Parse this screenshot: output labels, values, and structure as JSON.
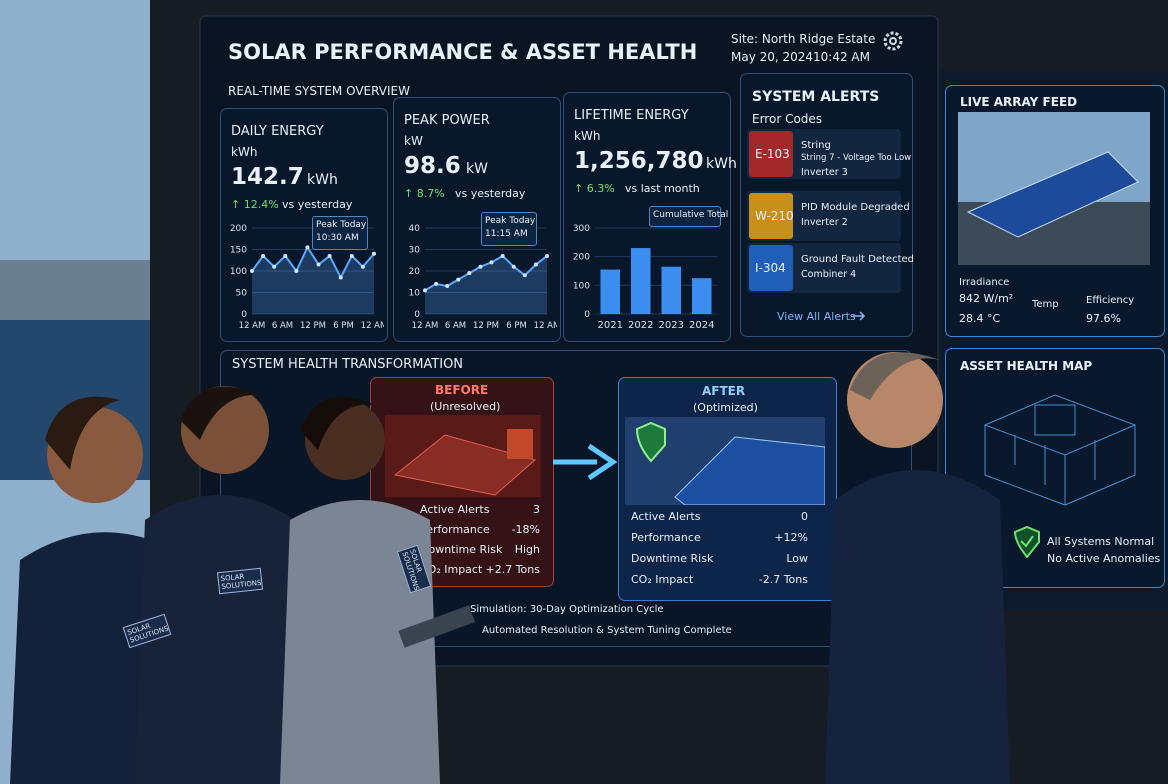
{
  "header": {
    "title": "SOLAR PERFORMANCE & ASSET HEALTH",
    "subtitle": "REAL-TIME SYSTEM OVERVIEW",
    "site": "Site: North Ridge Estate",
    "date": "May 20, 2024",
    "time": "10:42 AM"
  },
  "kpis": [
    {
      "title": "DAILY ENERGY",
      "unit": "kWh",
      "value": "142.7",
      "value_unit": "kWh",
      "change": "↑ 12.4%",
      "change_note": "vs yesterday",
      "callout": [
        "Peak Today",
        "10:30 AM"
      ],
      "chart": {
        "type": "line",
        "color": "#5aa9ff",
        "x_labels": [
          "12 AM",
          "6 AM",
          "12 PM",
          "6 PM",
          "12 AM"
        ],
        "ylim": [
          0,
          200
        ],
        "yticks": [
          0,
          50,
          100,
          150,
          200
        ],
        "values": [
          100,
          135,
          110,
          135,
          100,
          155,
          115,
          135,
          85,
          135,
          110,
          140
        ]
      }
    },
    {
      "title": "PEAK POWER",
      "unit": "kW",
      "value": "98.6",
      "value_unit": "kW",
      "change": "↑ 8.7%",
      "change_note": "vs yesterday",
      "callout": [
        "Peak Today",
        "11:15 AM"
      ],
      "chart": {
        "type": "line",
        "color": "#5aa9ff",
        "x_labels": [
          "12 AM",
          "6 AM",
          "12 PM",
          "6 PM",
          "12 AM"
        ],
        "ylim": [
          0,
          40
        ],
        "yticks": [
          0,
          10,
          20,
          30,
          40
        ],
        "values": [
          11,
          14,
          13,
          16,
          19,
          22,
          24,
          27,
          22,
          18,
          23,
          27
        ]
      }
    },
    {
      "title": "LIFETIME ENERGY",
      "unit": "kWh",
      "value": "1,256,780",
      "value_unit": "kWh",
      "change": "↑ 6.3%",
      "change_note": "vs last month",
      "callout": [
        "Cumulative Total"
      ],
      "chart": {
        "type": "bar",
        "color": "#3b8ef0",
        "categories": [
          "2021",
          "2022",
          "2023",
          "2024"
        ],
        "ylim": [
          0,
          300
        ],
        "yticks": [
          0,
          100,
          200,
          300
        ],
        "values": [
          155,
          230,
          165,
          125
        ]
      }
    }
  ],
  "alerts": {
    "title": "SYSTEM ALERTS",
    "subtitle": "Error Codes",
    "link": "View All Alerts",
    "items": [
      {
        "code": "E-103",
        "color": "#a3282a",
        "title": "String",
        "detail": "String 7 - Voltage Too Low",
        "source": "Inverter 3"
      },
      {
        "code": "W-210",
        "color": "#c8901a",
        "title": "PID Module Degraded",
        "source": "Inverter 2"
      },
      {
        "code": "I-304",
        "color": "#1f5fb8",
        "title": "Ground Fault Detected",
        "source": "Combiner 4"
      }
    ]
  },
  "transformation": {
    "title": "SYSTEM HEALTH TRANSFORMATION",
    "before": {
      "label": "BEFORE",
      "sublabel": "(Unresolved)",
      "rows": [
        [
          "Active Alerts",
          "3"
        ],
        [
          "Performance",
          "-18%"
        ],
        [
          "Downtime Risk",
          "High"
        ],
        [
          "CO₂ Impact",
          "+2.7 Tons"
        ]
      ]
    },
    "after": {
      "label": "AFTER",
      "sublabel": "(Optimized)",
      "rows": [
        [
          "Active Alerts",
          "0"
        ],
        [
          "Performance",
          "+12%"
        ],
        [
          "Downtime Risk",
          "Low"
        ],
        [
          "CO₂ Impact",
          "-2.7 Tons"
        ]
      ]
    },
    "footer": [
      "Simulation: 30-Day Optimization Cycle",
      "Automated Resolution & System Tuning Complete"
    ]
  },
  "live_feed": {
    "title": "LIVE ARRAY FEED",
    "irradiance_label": "Irradiance",
    "irradiance": "842 W/m²",
    "temp_label": "Temp",
    "temp": "28.4 °C",
    "efficiency_label": "Efficiency",
    "efficiency": "97.6%"
  },
  "asset_map": {
    "title": "ASSET HEALTH MAP",
    "status": "All Systems Normal",
    "note": "No Active Anomalies"
  },
  "badges": [
    "SOLAR SOLUTIONS",
    "SOLAR SOLUTIONS",
    "SOLAR SOLUTIONS"
  ]
}
